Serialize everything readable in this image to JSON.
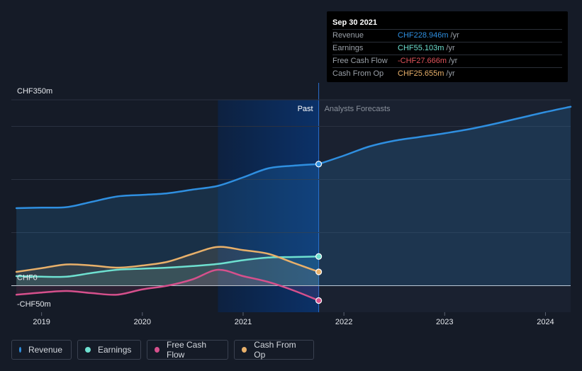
{
  "tooltip": {
    "date": "Sep 30 2021",
    "rows": [
      {
        "label": "Revenue",
        "value": "CHF228.946m",
        "unit": "/yr",
        "color": "#2f8fe0"
      },
      {
        "label": "Earnings",
        "value": "CHF55.103m",
        "unit": "/yr",
        "color": "#6ee0d0"
      },
      {
        "label": "Free Cash Flow",
        "value": "-CHF27.666m",
        "unit": "/yr",
        "color": "#e0535a"
      },
      {
        "label": "Cash From Op",
        "value": "CHF25.655m",
        "unit": "/yr",
        "color": "#e8b06a"
      }
    ]
  },
  "legend": [
    {
      "label": "Revenue",
      "color": "#2f8fe0"
    },
    {
      "label": "Earnings",
      "color": "#6ee0d0"
    },
    {
      "label": "Free Cash Flow",
      "color": "#d6508c"
    },
    {
      "label": "Cash From Op",
      "color": "#e8b06a"
    }
  ],
  "chart_data": {
    "type": "line",
    "y_ticks": [
      {
        "label": "CHF350m",
        "value": 350
      },
      {
        "label": "CHF0",
        "value": 0
      },
      {
        "label": "-CHF50m",
        "value": -50
      }
    ],
    "ylim": [
      -50,
      350
    ],
    "xlim": [
      2018.7,
      2024.25
    ],
    "x_ticks": [
      {
        "label": "2019",
        "value": 2019
      },
      {
        "label": "2020",
        "value": 2020
      },
      {
        "label": "2021",
        "value": 2021
      },
      {
        "label": "2022",
        "value": 2022
      },
      {
        "label": "2023",
        "value": 2023
      },
      {
        "label": "2024",
        "value": 2024
      }
    ],
    "past_label": "Past",
    "forecast_label": "Analysts Forecasts",
    "past_end": 2021.75,
    "highlight_start": 2020.75,
    "series": [
      {
        "name": "Revenue",
        "color": "#2f8fe0",
        "x": [
          2018.75,
          2019.0,
          2019.25,
          2019.5,
          2019.75,
          2020.0,
          2020.25,
          2020.5,
          2020.75,
          2021.0,
          2021.25,
          2021.5,
          2021.75
        ],
        "y": [
          146,
          147,
          148,
          158,
          168,
          171,
          174,
          181,
          188,
          204,
          221,
          226,
          229
        ]
      },
      {
        "name": "Revenue forecast",
        "color": "#2f8fe0",
        "x": [
          2021.75,
          2022.0,
          2022.25,
          2022.5,
          2022.75,
          2023.0,
          2023.25,
          2023.5,
          2023.75,
          2024.0,
          2024.25
        ],
        "y": [
          229,
          245,
          262,
          273,
          280,
          287,
          295,
          305,
          316,
          327,
          337
        ]
      },
      {
        "name": "Earnings",
        "color": "#6ee0d0",
        "x": [
          2018.75,
          2019.0,
          2019.25,
          2019.5,
          2019.75,
          2020.0,
          2020.25,
          2020.5,
          2020.75,
          2021.0,
          2021.25,
          2021.5,
          2021.75
        ],
        "y": [
          18,
          17,
          17,
          24,
          30,
          32,
          34,
          37,
          41,
          48,
          53,
          54,
          55
        ]
      },
      {
        "name": "Free Cash Flow",
        "color": "#d6508c",
        "x": [
          2018.75,
          2019.0,
          2019.25,
          2019.5,
          2019.75,
          2020.0,
          2020.25,
          2020.5,
          2020.75,
          2021.0,
          2021.25,
          2021.5,
          2021.75
        ],
        "y": [
          -17,
          -13,
          -10,
          -14,
          -17,
          -7,
          0,
          12,
          30,
          18,
          7,
          -9,
          -28
        ]
      },
      {
        "name": "Cash From Op",
        "color": "#e8b06a",
        "x": [
          2018.75,
          2019.0,
          2019.25,
          2019.5,
          2019.75,
          2020.0,
          2020.25,
          2020.5,
          2020.75,
          2021.0,
          2021.25,
          2021.5,
          2021.75
        ],
        "y": [
          26,
          33,
          40,
          38,
          34,
          38,
          45,
          60,
          73,
          67,
          60,
          43,
          26
        ]
      }
    ]
  }
}
